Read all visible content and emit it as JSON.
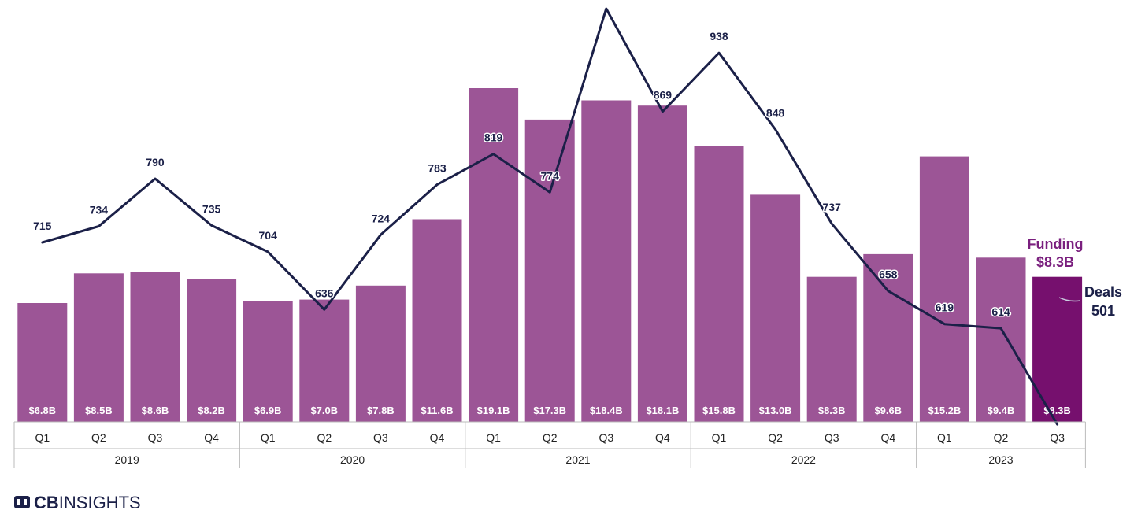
{
  "chart_data": {
    "type": "bar",
    "title": "",
    "categories": [
      "Q1",
      "Q2",
      "Q3",
      "Q4",
      "Q1",
      "Q2",
      "Q3",
      "Q4",
      "Q1",
      "Q2",
      "Q3",
      "Q4",
      "Q1",
      "Q2",
      "Q3",
      "Q4",
      "Q1",
      "Q2",
      "Q3"
    ],
    "years": [
      {
        "label": "2019",
        "quarters": 4
      },
      {
        "label": "2020",
        "quarters": 4
      },
      {
        "label": "2021",
        "quarters": 4
      },
      {
        "label": "2022",
        "quarters": 4
      },
      {
        "label": "2023",
        "quarters": 3
      }
    ],
    "series": [
      {
        "name": "Funding",
        "type": "bar",
        "unit": "$B",
        "values": [
          6.8,
          8.5,
          8.6,
          8.2,
          6.9,
          7.0,
          7.8,
          11.6,
          19.1,
          17.3,
          18.4,
          18.1,
          15.8,
          13.0,
          8.3,
          9.6,
          15.2,
          9.4,
          8.3
        ],
        "labels": [
          "$6.8B",
          "$8.5B",
          "$8.6B",
          "$8.2B",
          "$6.9B",
          "$7.0B",
          "$7.8B",
          "$11.6B",
          "$19.1B",
          "$17.3B",
          "$18.4B",
          "$18.1B",
          "$15.8B",
          "$13.0B",
          "$8.3B",
          "$9.6B",
          "$15.2B",
          "$9.4B",
          "$8.3B"
        ],
        "color": "#9c5596",
        "highlight_color": "#76106e"
      },
      {
        "name": "Deals",
        "type": "line",
        "values": [
          715,
          734,
          790,
          735,
          704,
          636,
          724,
          783,
          819,
          774,
          990,
          869,
          938,
          848,
          737,
          658,
          619,
          614,
          501
        ],
        "color": "#1b2048"
      }
    ],
    "callouts": {
      "funding_title": "Funding",
      "funding_value": "$8.3B",
      "deals_title": "Deals",
      "deals_value": "501"
    }
  },
  "brand": {
    "logo_text_bold": "CB",
    "logo_text_light": "INSIGHTS",
    "logo_icon": "cb-insights-logo-icon"
  }
}
